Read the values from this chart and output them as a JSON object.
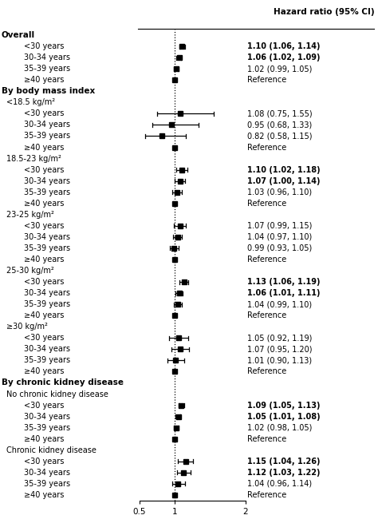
{
  "header": "Hazard ratio (95% CI)",
  "rows_flat": [
    {
      "type": "header_main",
      "label": "Overall"
    },
    {
      "type": "data",
      "label": "<30 years",
      "hr": 1.1,
      "lo": 1.06,
      "hi": 1.14,
      "text": "1.10 (1.06, 1.14)",
      "bold": true,
      "ref": false
    },
    {
      "type": "data",
      "label": "30-34 years",
      "hr": 1.06,
      "lo": 1.02,
      "hi": 1.09,
      "text": "1.06 (1.02, 1.09)",
      "bold": true,
      "ref": false
    },
    {
      "type": "data",
      "label": "35-39 years",
      "hr": 1.02,
      "lo": 0.99,
      "hi": 1.05,
      "text": "1.02 (0.99, 1.05)",
      "bold": false,
      "ref": false
    },
    {
      "type": "data",
      "label": "≥40 years",
      "hr": 1.0,
      "lo": 1.0,
      "hi": 1.0,
      "text": "Reference",
      "bold": false,
      "ref": true
    },
    {
      "type": "header_main",
      "label": "By body mass index"
    },
    {
      "type": "subgroup",
      "label": "<18.5 kg/m²"
    },
    {
      "type": "data",
      "label": "<30 years",
      "hr": 1.08,
      "lo": 0.75,
      "hi": 1.55,
      "text": "1.08 (0.75, 1.55)",
      "bold": false,
      "ref": false
    },
    {
      "type": "data",
      "label": "30-34 years",
      "hr": 0.95,
      "lo": 0.68,
      "hi": 1.33,
      "text": "0.95 (0.68, 1.33)",
      "bold": false,
      "ref": false
    },
    {
      "type": "data",
      "label": "35-39 years",
      "hr": 0.82,
      "lo": 0.58,
      "hi": 1.15,
      "text": "0.82 (0.58, 1.15)",
      "bold": false,
      "ref": false
    },
    {
      "type": "data",
      "label": "≥40 years",
      "hr": 1.0,
      "lo": 1.0,
      "hi": 1.0,
      "text": "Reference",
      "bold": false,
      "ref": true
    },
    {
      "type": "subgroup",
      "label": "18.5-23 kg/m²"
    },
    {
      "type": "data",
      "label": "<30 years",
      "hr": 1.1,
      "lo": 1.02,
      "hi": 1.18,
      "text": "1.10 (1.02, 1.18)",
      "bold": true,
      "ref": false
    },
    {
      "type": "data",
      "label": "30-34 years",
      "hr": 1.07,
      "lo": 1.0,
      "hi": 1.14,
      "text": "1.07 (1.00, 1.14)",
      "bold": true,
      "ref": false
    },
    {
      "type": "data",
      "label": "35-39 years",
      "hr": 1.03,
      "lo": 0.96,
      "hi": 1.1,
      "text": "1.03 (0.96, 1.10)",
      "bold": false,
      "ref": false
    },
    {
      "type": "data",
      "label": "≥40 years",
      "hr": 1.0,
      "lo": 1.0,
      "hi": 1.0,
      "text": "Reference",
      "bold": false,
      "ref": true
    },
    {
      "type": "subgroup",
      "label": "23-25 kg/m²"
    },
    {
      "type": "data",
      "label": "<30 years",
      "hr": 1.07,
      "lo": 0.99,
      "hi": 1.15,
      "text": "1.07 (0.99, 1.15)",
      "bold": false,
      "ref": false
    },
    {
      "type": "data",
      "label": "30-34 years",
      "hr": 1.04,
      "lo": 0.97,
      "hi": 1.1,
      "text": "1.04 (0.97, 1.10)",
      "bold": false,
      "ref": false
    },
    {
      "type": "data",
      "label": "35-39 years",
      "hr": 0.99,
      "lo": 0.93,
      "hi": 1.05,
      "text": "0.99 (0.93, 1.05)",
      "bold": false,
      "ref": false
    },
    {
      "type": "data",
      "label": "≥40 years",
      "hr": 1.0,
      "lo": 1.0,
      "hi": 1.0,
      "text": "Reference",
      "bold": false,
      "ref": true
    },
    {
      "type": "subgroup",
      "label": "25-30 kg/m²"
    },
    {
      "type": "data",
      "label": "<30 years",
      "hr": 1.13,
      "lo": 1.06,
      "hi": 1.19,
      "text": "1.13 (1.06, 1.19)",
      "bold": true,
      "ref": false
    },
    {
      "type": "data",
      "label": "30-34 years",
      "hr": 1.06,
      "lo": 1.01,
      "hi": 1.11,
      "text": "1.06 (1.01, 1.11)",
      "bold": true,
      "ref": false
    },
    {
      "type": "data",
      "label": "35-39 years",
      "hr": 1.04,
      "lo": 0.99,
      "hi": 1.1,
      "text": "1.04 (0.99, 1.10)",
      "bold": false,
      "ref": false
    },
    {
      "type": "data",
      "label": "≥40 years",
      "hr": 1.0,
      "lo": 1.0,
      "hi": 1.0,
      "text": "Reference",
      "bold": false,
      "ref": true
    },
    {
      "type": "subgroup",
      "label": "≥30 kg/m²"
    },
    {
      "type": "data",
      "label": "<30 years",
      "hr": 1.05,
      "lo": 0.92,
      "hi": 1.19,
      "text": "1.05 (0.92, 1.19)",
      "bold": false,
      "ref": false
    },
    {
      "type": "data",
      "label": "30-34 years",
      "hr": 1.07,
      "lo": 0.95,
      "hi": 1.2,
      "text": "1.07 (0.95, 1.20)",
      "bold": false,
      "ref": false
    },
    {
      "type": "data",
      "label": "35-39 years",
      "hr": 1.01,
      "lo": 0.9,
      "hi": 1.13,
      "text": "1.01 (0.90, 1.13)",
      "bold": false,
      "ref": false
    },
    {
      "type": "data",
      "label": "≥40 years",
      "hr": 1.0,
      "lo": 1.0,
      "hi": 1.0,
      "text": "Reference",
      "bold": false,
      "ref": true
    },
    {
      "type": "header_main",
      "label": "By chronic kidney disease"
    },
    {
      "type": "subgroup",
      "label": "No chronic kidney disease"
    },
    {
      "type": "data",
      "label": "<30 years",
      "hr": 1.09,
      "lo": 1.05,
      "hi": 1.13,
      "text": "1.09 (1.05, 1.13)",
      "bold": true,
      "ref": false
    },
    {
      "type": "data",
      "label": "30-34 years",
      "hr": 1.05,
      "lo": 1.01,
      "hi": 1.08,
      "text": "1.05 (1.01, 1.08)",
      "bold": true,
      "ref": false
    },
    {
      "type": "data",
      "label": "35-39 years",
      "hr": 1.02,
      "lo": 0.98,
      "hi": 1.05,
      "text": "1.02 (0.98, 1.05)",
      "bold": false,
      "ref": false
    },
    {
      "type": "data",
      "label": "≥40 years",
      "hr": 1.0,
      "lo": 1.0,
      "hi": 1.0,
      "text": "Reference",
      "bold": false,
      "ref": true
    },
    {
      "type": "subgroup",
      "label": "Chronic kidney disease"
    },
    {
      "type": "data",
      "label": "<30 years",
      "hr": 1.15,
      "lo": 1.04,
      "hi": 1.26,
      "text": "1.15 (1.04, 1.26)",
      "bold": true,
      "ref": false
    },
    {
      "type": "data",
      "label": "30-34 years",
      "hr": 1.12,
      "lo": 1.03,
      "hi": 1.22,
      "text": "1.12 (1.03, 1.22)",
      "bold": true,
      "ref": false
    },
    {
      "type": "data",
      "label": "35-39 years",
      "hr": 1.04,
      "lo": 0.96,
      "hi": 1.14,
      "text": "1.04 (0.96, 1.14)",
      "bold": false,
      "ref": false
    },
    {
      "type": "data",
      "label": "≥40 years",
      "hr": 1.0,
      "lo": 1.0,
      "hi": 1.0,
      "text": "Reference",
      "bold": false,
      "ref": true
    }
  ],
  "xmin": 0.5,
  "xmax": 2.0,
  "xticks": [
    0.5,
    1.0,
    2.0
  ],
  "xticklabels": [
    "0.5",
    "1",
    "2"
  ],
  "vline": 1.0
}
